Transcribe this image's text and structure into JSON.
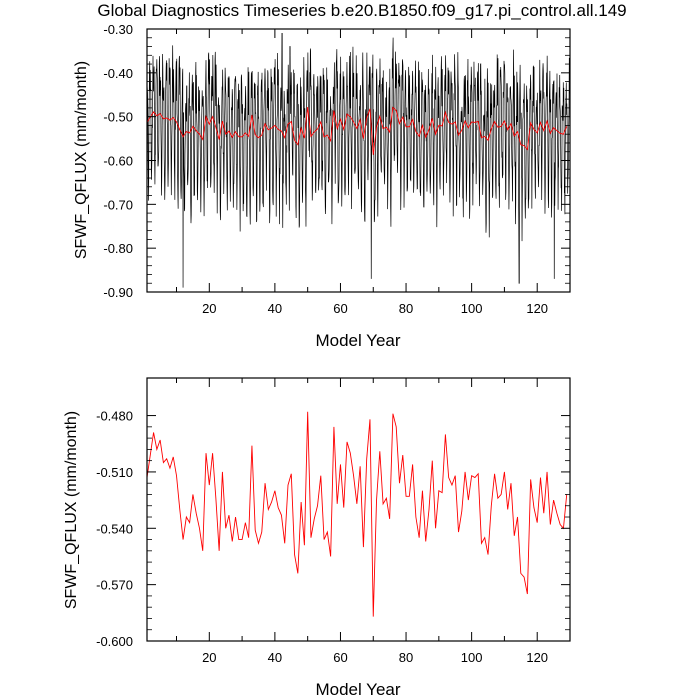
{
  "title": "Global Diagnostics Timeseries b.e20.B1850.f09_g17.pi_control.all.149",
  "colors": {
    "monthly": "#000000",
    "annual": "#ff0000",
    "axes": "#000000"
  },
  "chart_data": [
    {
      "type": "line",
      "xlabel": "Model Year",
      "ylabel": "SFWF_QFLUX (mm/month)",
      "xlim": [
        1,
        130
      ],
      "ylim": [
        -0.9,
        -0.3
      ],
      "xticks": [
        20,
        40,
        60,
        80,
        100,
        120
      ],
      "xtick_labels": [
        "20",
        "40",
        "60",
        "80",
        "100",
        "120"
      ],
      "yticks": [
        -0.9,
        -0.8,
        -0.7,
        -0.6,
        -0.5,
        -0.4,
        -0.3
      ],
      "ytick_labels": [
        "-0.90",
        "-0.80",
        "-0.70",
        "-0.60",
        "-0.50",
        "-0.40",
        "-0.30"
      ],
      "series": [
        {
          "kind": "monthly",
          "color": "#000000",
          "note": "monthly global mean, oscillating about -0.52 roughly between -0.89 and -0.31",
          "x_start": 1,
          "x_step": 0.0833,
          "cycle": [
            -0.45,
            -0.42,
            -0.47,
            -0.55,
            -0.63,
            -0.68,
            -0.66,
            -0.58,
            -0.5,
            -0.44,
            -0.41,
            -0.43
          ],
          "extremes": [
            [
              12.0,
              -0.89
            ],
            [
              42.2,
              -0.31
            ],
            [
              44.6,
              -0.34
            ],
            [
              69.4,
              -0.87
            ],
            [
              114.5,
              -0.88
            ],
            [
              125.2,
              -0.87
            ]
          ]
        },
        {
          "kind": "annual",
          "color": "#ff0000",
          "x": [
            1,
            2,
            3,
            4,
            5,
            6,
            7,
            8,
            9,
            10,
            11,
            12,
            13,
            14,
            15,
            16,
            17,
            18,
            19,
            20,
            21,
            22,
            23,
            24,
            25,
            26,
            27,
            28,
            29,
            30,
            31,
            32,
            33,
            34,
            35,
            36,
            37,
            38,
            39,
            40,
            41,
            42,
            43,
            44,
            45,
            46,
            47,
            48,
            49,
            50,
            51,
            52,
            53,
            54,
            55,
            56,
            57,
            58,
            59,
            60,
            61,
            62,
            63,
            64,
            65,
            66,
            67,
            68,
            69,
            70,
            71,
            72,
            73,
            74,
            75,
            76,
            77,
            78,
            79,
            80,
            81,
            82,
            83,
            84,
            85,
            86,
            87,
            88,
            89,
            90,
            91,
            92,
            93,
            94,
            95,
            96,
            97,
            98,
            99,
            100,
            101,
            102,
            103,
            104,
            105,
            106,
            107,
            108,
            109,
            110,
            111,
            112,
            113,
            114,
            115,
            116,
            117,
            118,
            119,
            120,
            121,
            122,
            123,
            124,
            125,
            126,
            127,
            128,
            129
          ],
          "values": [
            -0.513,
            -0.501,
            -0.489,
            -0.498,
            -0.493,
            -0.505,
            -0.503,
            -0.508,
            -0.502,
            -0.512,
            -0.53,
            -0.546,
            -0.534,
            -0.537,
            -0.522,
            -0.532,
            -0.54,
            -0.552,
            -0.5,
            -0.517,
            -0.5,
            -0.524,
            -0.552,
            -0.51,
            -0.54,
            -0.533,
            -0.547,
            -0.534,
            -0.546,
            -0.546,
            -0.537,
            -0.545,
            -0.496,
            -0.541,
            -0.548,
            -0.542,
            -0.516,
            -0.53,
            -0.526,
            -0.52,
            -0.529,
            -0.533,
            -0.548,
            -0.517,
            -0.511,
            -0.554,
            -0.564,
            -0.526,
            -0.549,
            -0.478,
            -0.545,
            -0.535,
            -0.528,
            -0.512,
            -0.546,
            -0.542,
            -0.555,
            -0.486,
            -0.527,
            -0.506,
            -0.529,
            -0.494,
            -0.5,
            -0.512,
            -0.527,
            -0.507,
            -0.55,
            -0.503,
            -0.482,
            -0.587,
            -0.525,
            -0.499,
            -0.527,
            -0.524,
            -0.535,
            -0.479,
            -0.486,
            -0.516,
            -0.501,
            -0.523,
            -0.523,
            -0.506,
            -0.534,
            -0.545,
            -0.52,
            -0.547,
            -0.53,
            -0.504,
            -0.54,
            -0.52,
            -0.521,
            -0.49,
            -0.513,
            -0.517,
            -0.512,
            -0.542,
            -0.531,
            -0.51,
            -0.525,
            -0.512,
            -0.513,
            -0.511,
            -0.548,
            -0.545,
            -0.554,
            -0.528,
            -0.511,
            -0.524,
            -0.522,
            -0.51,
            -0.53,
            -0.516,
            -0.544,
            -0.534,
            -0.564,
            -0.566,
            -0.575,
            -0.514,
            -0.529,
            -0.537,
            -0.513,
            -0.532,
            -0.51,
            -0.538,
            -0.525,
            -0.532,
            -0.538,
            -0.54,
            -0.522
          ]
        }
      ]
    },
    {
      "type": "line",
      "xlabel": "Model Year",
      "ylabel": "SFWF_QFLUX (mm/month)",
      "xlim": [
        1,
        130
      ],
      "ylim": [
        -0.6,
        -0.46
      ],
      "xticks": [
        20,
        40,
        60,
        80,
        100,
        120
      ],
      "xtick_labels": [
        "20",
        "40",
        "60",
        "80",
        "100",
        "120"
      ],
      "yticks": [
        -0.6,
        -0.57,
        -0.54,
        -0.51,
        -0.48
      ],
      "ytick_labels": [
        "-0.600",
        "-0.570",
        "-0.540",
        "-0.510",
        "-0.480"
      ],
      "series": [
        {
          "kind": "annual",
          "color": "#ff0000",
          "same_as": "chart_data.0.series.1"
        }
      ]
    }
  ]
}
